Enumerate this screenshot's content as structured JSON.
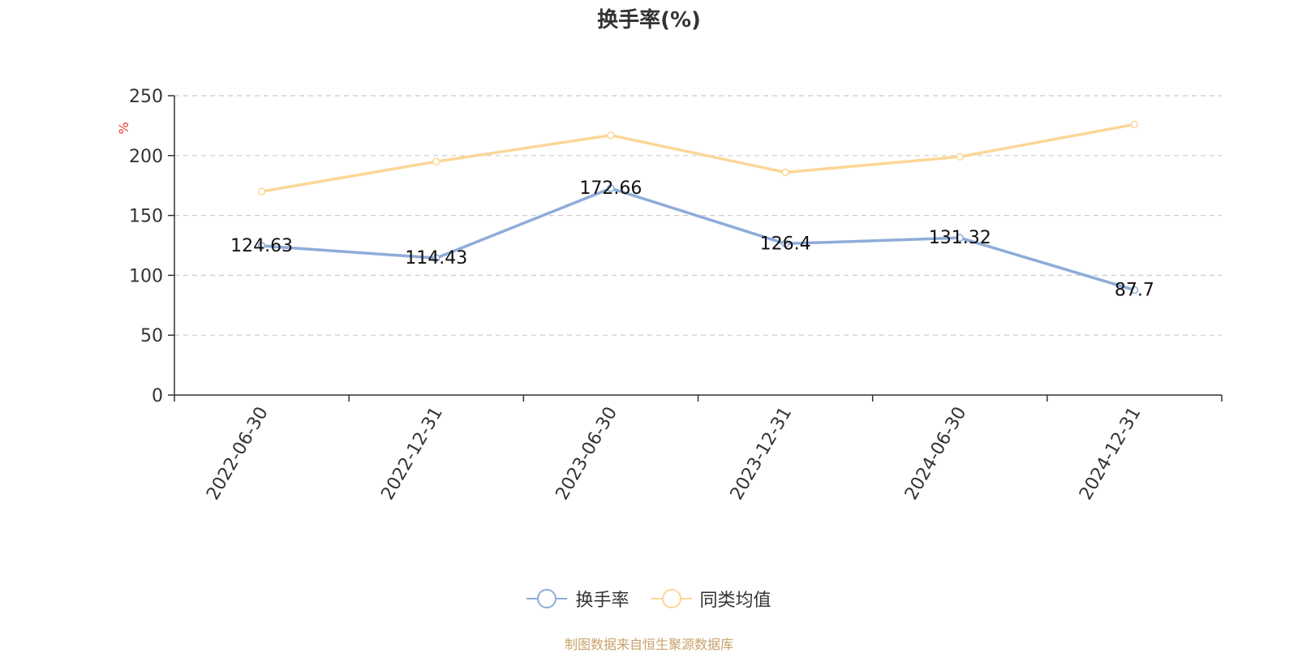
{
  "chart_data": {
    "type": "line",
    "title": "换手率(%)",
    "ylabel": "%",
    "xlabel": "",
    "ylim": [
      0,
      250
    ],
    "yticks": [
      0,
      50,
      100,
      150,
      200,
      250
    ],
    "categories": [
      "2022-06-30",
      "2022-12-31",
      "2023-06-30",
      "2023-12-31",
      "2024-06-30",
      "2024-12-31"
    ],
    "series": [
      {
        "name": "换手率",
        "color": "#8eacd9",
        "values": [
          124.63,
          114.43,
          172.66,
          126.4,
          131.32,
          87.7
        ],
        "value_labels": [
          "124.63",
          "114.43",
          "172.66",
          "126.4",
          "131.32",
          "87.7"
        ],
        "show_labels": true
      },
      {
        "name": "同类均值",
        "color": "#fcd697",
        "values": [
          170,
          195,
          217,
          186,
          199,
          226
        ],
        "show_labels": false
      }
    ],
    "grid": true,
    "legend": "bottom-center"
  },
  "source": "制图数据来自恒生聚源数据库"
}
